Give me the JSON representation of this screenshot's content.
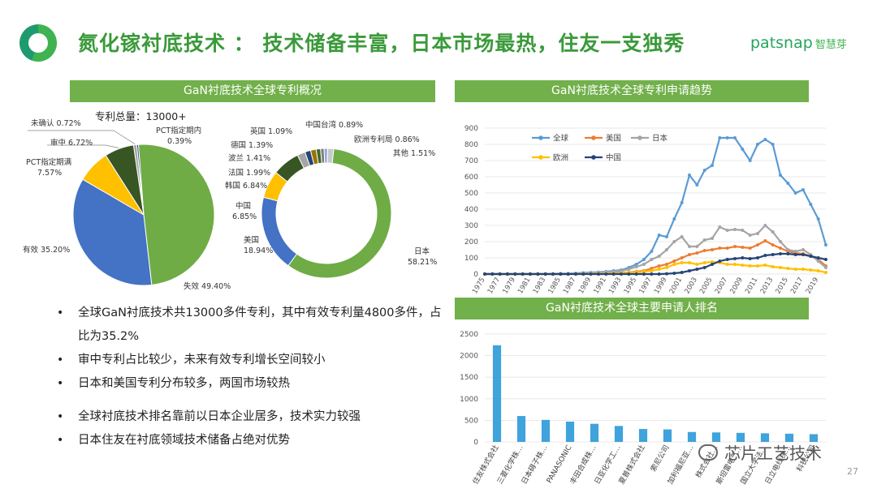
{
  "title": "氮化镓衬底技术 ： 技术储备丰富，日本市场最热，住友一支独秀",
  "brand": {
    "name": "patsnap",
    "cn": "智慧芽"
  },
  "page_number": "27",
  "watermark": "芯片工艺技术",
  "bullets": [
    "全球GaN衬底技术共13000多件专利，其中有效专利量4800多件，占比为35.2%",
    "审中专利占比较少，未来有效专利增长空间较小",
    "日本和美国专利分布较多，两国市场较热",
    "全球衬底技术排名靠前以日本企业居多，技术实力较强",
    "日本住友在衬底领域技术储备占绝对优势"
  ],
  "colors": {
    "green": "#6fac46",
    "blue": "#4472c4",
    "gold": "#ffc000",
    "dkgreen": "#375623",
    "gray": "#a5a5a5",
    "series_global": "#5b9bd5",
    "series_us": "#ed7d31",
    "series_jp": "#a5a5a5",
    "series_eu": "#ffc000",
    "series_cn": "#264478",
    "bar": "#3fa3dc"
  },
  "chart_data": [
    {
      "type": "pie",
      "title": "GaN衬底技术全球专利概况",
      "annotation": "专利总量：13000+",
      "slices": [
        {
          "label": "失效",
          "value": 49.4,
          "text": "失效 49.40%",
          "color": "#6fac46"
        },
        {
          "label": "有效",
          "value": 35.2,
          "text": "有效 35.20%",
          "color": "#4472c4"
        },
        {
          "label": "PCT指定期满",
          "value": 7.57,
          "text": "PCT指定期满 7.57%",
          "color": "#ffc000"
        },
        {
          "label": "审中",
          "value": 6.72,
          "text": "审中 6.72%",
          "color": "#375623"
        },
        {
          "label": "未确认",
          "value": 0.72,
          "text": "未确认 0.72%",
          "color": "#a5a5a5"
        },
        {
          "label": "PCT指定期内",
          "value": 0.39,
          "text": "PCT指定期内 0.39%",
          "color": "#264478"
        }
      ]
    },
    {
      "type": "pie",
      "subtype": "donut",
      "slices": [
        {
          "label": "日本",
          "value": 58.21,
          "text": "日本 58.21%",
          "color": "#6fac46"
        },
        {
          "label": "美国",
          "value": 18.94,
          "text": "美国 18.94%",
          "color": "#4472c4"
        },
        {
          "label": "中国",
          "value": 6.85,
          "text": "中国 6.85%",
          "color": "#ffc000"
        },
        {
          "label": "韩国",
          "value": 6.84,
          "text": "韩国 6.84%",
          "color": "#375623"
        },
        {
          "label": "法国",
          "value": 1.99,
          "text": "法国 1.99%",
          "color": "#a5a5a5"
        },
        {
          "label": "波兰",
          "value": 1.41,
          "text": "波兰 1.41%",
          "color": "#264478"
        },
        {
          "label": "德国",
          "value": 1.39,
          "text": "德国 1.39%",
          "color": "#997300"
        },
        {
          "label": "英国",
          "value": 1.09,
          "text": "英国 1.09%",
          "color": "#43682b"
        },
        {
          "label": "中国台湾",
          "value": 0.89,
          "text": "中国台湾 0.89%",
          "color": "#7f7f7f"
        },
        {
          "label": "欧洲专利局",
          "value": 0.86,
          "text": "欧洲专利局 0.86%",
          "color": "#8faadc"
        },
        {
          "label": "其他",
          "value": 1.51,
          "text": "其他 1.51%",
          "color": "#c9c9c9"
        }
      ]
    },
    {
      "type": "line",
      "title": "GaN衬底技术全球专利申请趋势",
      "x_start": 1975,
      "x_end": 2020,
      "x_ticks": [
        "1975",
        "1977",
        "1979",
        "1981",
        "1983",
        "1985",
        "1987",
        "1989",
        "1991",
        "1993",
        "1995",
        "1997",
        "1999",
        "2001",
        "2003",
        "2005",
        "2007",
        "2009",
        "2011",
        "2013",
        "2015",
        "2017",
        "2019"
      ],
      "ylim": [
        0,
        900
      ],
      "yticks": [
        0,
        100,
        200,
        300,
        400,
        500,
        600,
        700,
        800,
        900
      ],
      "grid": true,
      "legend": "top-left",
      "series": [
        {
          "name": "全球",
          "color": "#5b9bd5",
          "values": [
            2,
            2,
            2,
            2,
            2,
            2,
            2,
            2,
            2,
            2,
            3,
            3,
            5,
            8,
            10,
            12,
            15,
            20,
            25,
            40,
            60,
            90,
            140,
            240,
            230,
            340,
            440,
            610,
            550,
            640,
            670,
            840,
            840,
            840,
            770,
            700,
            800,
            830,
            800,
            610,
            560,
            500,
            520,
            430,
            340,
            180
          ]
        },
        {
          "name": "美国",
          "color": "#ed7d31",
          "values": [
            0,
            0,
            0,
            0,
            0,
            0,
            0,
            0,
            0,
            0,
            0,
            0,
            1,
            2,
            3,
            4,
            5,
            6,
            8,
            10,
            15,
            20,
            35,
            50,
            60,
            80,
            100,
            120,
            130,
            145,
            150,
            160,
            160,
            170,
            165,
            160,
            180,
            205,
            180,
            160,
            140,
            130,
            125,
            110,
            90,
            50
          ]
        },
        {
          "name": "日本",
          "color": "#a5a5a5",
          "values": [
            0,
            0,
            0,
            0,
            0,
            0,
            0,
            0,
            0,
            0,
            1,
            2,
            3,
            5,
            8,
            10,
            12,
            15,
            20,
            30,
            45,
            60,
            90,
            110,
            150,
            200,
            230,
            170,
            170,
            210,
            220,
            290,
            270,
            275,
            270,
            240,
            250,
            300,
            260,
            200,
            150,
            140,
            150,
            120,
            80,
            40
          ]
        },
        {
          "name": "欧洲",
          "color": "#ffc000",
          "values": [
            0,
            0,
            0,
            0,
            0,
            0,
            0,
            0,
            0,
            0,
            0,
            0,
            1,
            1,
            2,
            2,
            3,
            4,
            5,
            8,
            10,
            15,
            20,
            30,
            40,
            60,
            70,
            70,
            60,
            70,
            75,
            70,
            60,
            60,
            55,
            50,
            50,
            55,
            45,
            40,
            35,
            30,
            30,
            25,
            20,
            10
          ]
        },
        {
          "name": "中国",
          "color": "#264478",
          "values": [
            0,
            0,
            0,
            0,
            0,
            0,
            0,
            0,
            0,
            0,
            0,
            0,
            0,
            0,
            0,
            0,
            0,
            0,
            0,
            0,
            0,
            0,
            0,
            0,
            2,
            5,
            10,
            20,
            30,
            40,
            60,
            80,
            90,
            95,
            100,
            95,
            100,
            115,
            120,
            125,
            125,
            120,
            120,
            110,
            100,
            90
          ]
        }
      ]
    },
    {
      "type": "bar",
      "title": "GaN衬底技术全球主要申请人排名",
      "categories": [
        "住友株式会社",
        "三菱化学株…",
        "日本碍子株…",
        "PANASONIC",
        "丰田合成株…",
        "日亚化学工…",
        "夏普株式会社",
        "索尼公司",
        "加利福尼亚…",
        "株式会社…",
        "斯坦雷电气…",
        "国立大学法…",
        "日立电线株…",
        "科锐公司"
      ],
      "values": [
        2240,
        600,
        510,
        470,
        420,
        370,
        300,
        290,
        230,
        220,
        210,
        200,
        190,
        180
      ],
      "ylim": [
        0,
        2500
      ],
      "yticks": [
        0,
        500,
        1000,
        1500,
        2000,
        2500
      ],
      "color": "#3fa3dc"
    }
  ]
}
